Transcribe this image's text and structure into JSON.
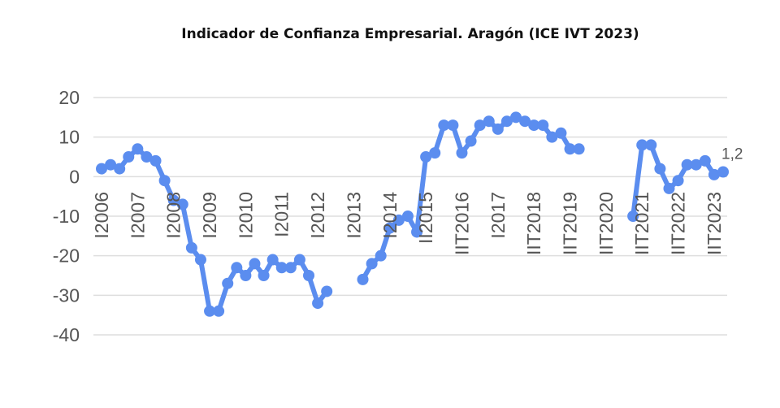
{
  "chart_data": {
    "type": "line",
    "title": "Indicador de Confianza Empresarial. Aragón (ICE IVT 2023)",
    "xlabel": "",
    "ylabel": "",
    "ylim": [
      -40,
      20
    ],
    "yticks": [
      20,
      10,
      0,
      -10,
      -20,
      -30,
      -40
    ],
    "grid": true,
    "color": "#5b8def",
    "x_tick_labels": [
      "I2006",
      "I2007",
      "I2008",
      "I2009",
      "I2010",
      "I2011",
      "I2012",
      "I2013",
      "I2014",
      "II2015",
      "IIT2016",
      "I2017",
      "IIT2018",
      "IIT2019",
      "IIT2020",
      "IIT2021",
      "IIT2022",
      "IIT2023"
    ],
    "x_tick_positions": [
      0,
      4,
      8,
      12,
      16,
      20,
      24,
      28,
      32,
      36,
      40,
      44,
      48,
      52,
      56,
      60,
      64,
      68
    ],
    "series": [
      {
        "values": [
          2,
          3,
          2,
          5,
          7,
          5,
          4,
          -1,
          -6,
          -7,
          -18,
          -21,
          -34,
          -34,
          -27,
          -23,
          -25,
          -22,
          -25,
          -21,
          -23,
          -23,
          -21,
          -25,
          -32,
          -29,
          null,
          null,
          null,
          -26,
          -22,
          -20,
          -13,
          -11,
          -10,
          -14,
          5,
          6,
          13,
          13,
          6,
          9,
          13,
          14,
          12,
          14,
          15,
          14,
          13,
          13,
          10,
          11,
          7,
          7,
          null,
          null,
          null,
          null,
          null,
          -10,
          8,
          8,
          2,
          -3,
          -1,
          3,
          3,
          4,
          0.5,
          1.2
        ],
        "end_label": "1,2"
      }
    ]
  }
}
